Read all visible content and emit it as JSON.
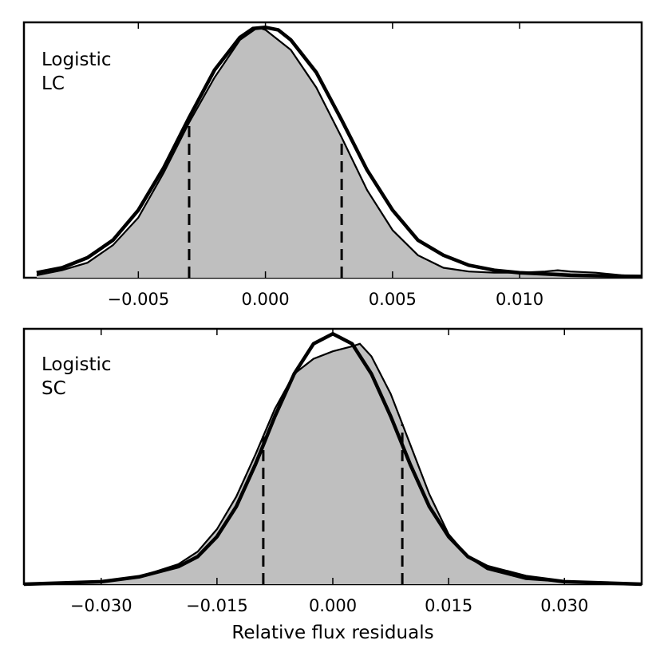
{
  "chart_data": [
    {
      "type": "area",
      "panel_label": [
        "Logistic",
        "LC"
      ],
      "xlim": [
        -0.0095,
        0.0148
      ],
      "ylim": [
        0,
        1.02
      ],
      "xticks": [
        -0.005,
        0.0,
        0.005,
        0.01
      ],
      "xtick_labels": [
        "−0.005",
        "0.000",
        "0.005",
        "0.010"
      ],
      "yticks": [],
      "xlabel": "",
      "ylabel": "",
      "histogram_fill": "#bfbfbf",
      "dashed_lines_x": [
        -0.003,
        0.003
      ],
      "series": [
        {
          "role": "filled-histogram",
          "x": [
            -0.009,
            -0.008,
            -0.007,
            -0.006,
            -0.005,
            -0.004,
            -0.003,
            -0.002,
            -0.001,
            -0.0003,
            0.0,
            0.001,
            0.002,
            0.003,
            0.004,
            0.005,
            0.006,
            0.007,
            0.008,
            0.009,
            0.01,
            0.011,
            0.0115,
            0.012,
            0.013,
            0.014,
            0.0148
          ],
          "y": [
            0.01,
            0.03,
            0.06,
            0.13,
            0.24,
            0.42,
            0.62,
            0.8,
            0.95,
            1.0,
            0.99,
            0.91,
            0.76,
            0.56,
            0.35,
            0.19,
            0.09,
            0.04,
            0.025,
            0.02,
            0.02,
            0.025,
            0.03,
            0.025,
            0.02,
            0.01,
            0.005
          ]
        },
        {
          "role": "logistic-model",
          "x": [
            -0.009,
            -0.008,
            -0.007,
            -0.006,
            -0.005,
            -0.004,
            -0.003,
            -0.002,
            -0.001,
            -0.0005,
            0.0,
            0.0005,
            0.001,
            0.002,
            0.003,
            0.004,
            0.005,
            0.006,
            0.007,
            0.008,
            0.009,
            0.01,
            0.011,
            0.012,
            0.013,
            0.014,
            0.0148
          ],
          "y": [
            0.02,
            0.04,
            0.08,
            0.15,
            0.27,
            0.44,
            0.64,
            0.83,
            0.96,
            0.995,
            1.0,
            0.99,
            0.95,
            0.82,
            0.63,
            0.43,
            0.27,
            0.15,
            0.09,
            0.05,
            0.03,
            0.02,
            0.015,
            0.01,
            0.008,
            0.006,
            0.005
          ]
        }
      ]
    },
    {
      "type": "area",
      "panel_label": [
        "Logistic",
        "SC"
      ],
      "xlim": [
        -0.04,
        0.04
      ],
      "ylim": [
        0,
        1.02
      ],
      "xticks": [
        -0.03,
        -0.015,
        0.0,
        0.015,
        0.03
      ],
      "xtick_labels": [
        "−0.030",
        "−0.015",
        "0.000",
        "0.015",
        "0.030"
      ],
      "yticks": [],
      "xlabel": "Relative flux residuals",
      "ylabel": "",
      "histogram_fill": "#bfbfbf",
      "dashed_lines_x": [
        -0.009,
        0.009
      ],
      "series": [
        {
          "role": "filled-histogram",
          "x": [
            -0.04,
            -0.03,
            -0.025,
            -0.02,
            -0.0175,
            -0.015,
            -0.0125,
            -0.01,
            -0.0075,
            -0.005,
            -0.0025,
            0.0,
            0.0025,
            0.0035,
            0.005,
            0.0075,
            0.01,
            0.0125,
            0.015,
            0.0175,
            0.02,
            0.025,
            0.03,
            0.04
          ],
          "y": [
            0.0,
            0.01,
            0.03,
            0.08,
            0.13,
            0.22,
            0.35,
            0.52,
            0.7,
            0.84,
            0.9,
            0.93,
            0.95,
            0.96,
            0.91,
            0.76,
            0.56,
            0.36,
            0.2,
            0.11,
            0.06,
            0.02,
            0.01,
            0.0
          ]
        },
        {
          "role": "logistic-model",
          "x": [
            -0.04,
            -0.03,
            -0.025,
            -0.02,
            -0.0175,
            -0.015,
            -0.0125,
            -0.01,
            -0.0075,
            -0.005,
            -0.0025,
            0.0,
            0.0025,
            0.005,
            0.0075,
            0.01,
            0.0125,
            0.015,
            0.0175,
            0.02,
            0.025,
            0.03,
            0.04
          ],
          "y": [
            0.0,
            0.01,
            0.03,
            0.07,
            0.11,
            0.19,
            0.31,
            0.48,
            0.67,
            0.84,
            0.96,
            1.0,
            0.96,
            0.84,
            0.67,
            0.48,
            0.31,
            0.19,
            0.11,
            0.07,
            0.03,
            0.01,
            0.0
          ]
        }
      ]
    }
  ]
}
